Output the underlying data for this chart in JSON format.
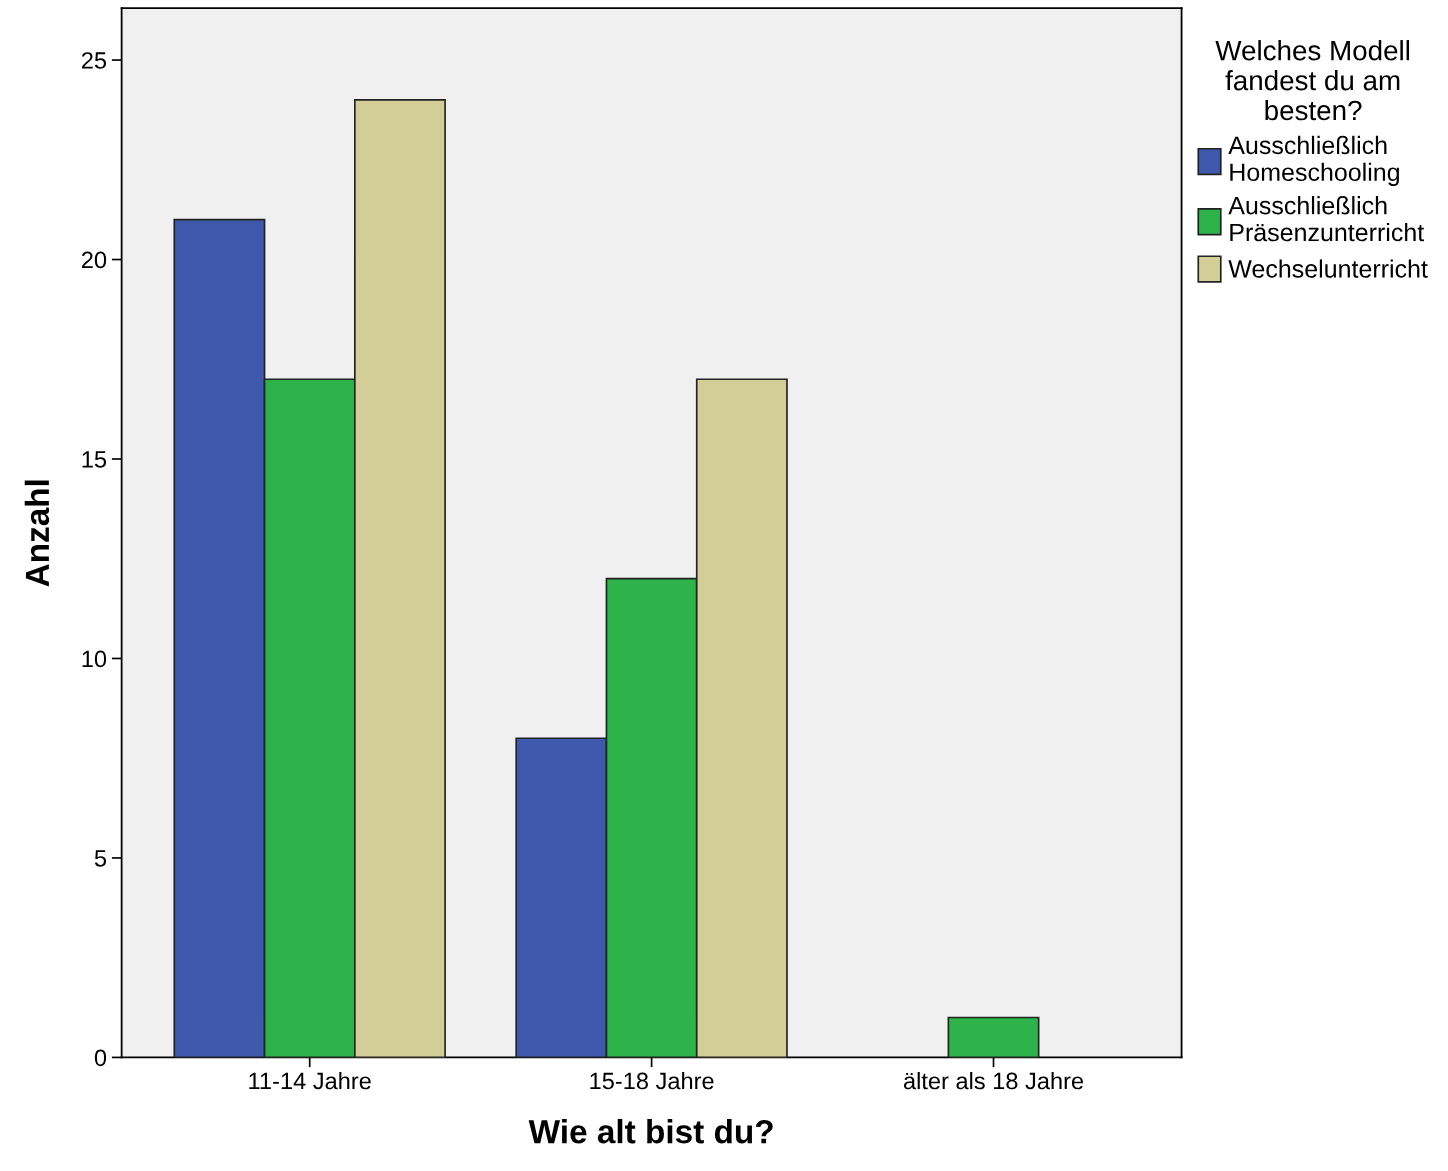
{
  "chart_data": {
    "type": "bar",
    "xlabel": "Wie alt bist du?",
    "ylabel": "Anzahl",
    "legend_title": "Welches Modell\nfandest du am\nbesten?",
    "categories": [
      "11-14 Jahre",
      "15-18 Jahre",
      "älter als 18 Jahre"
    ],
    "series": [
      {
        "name": "Ausschließlich\nHomeschooling",
        "color": "#3e58ac",
        "values": [
          21,
          8,
          null
        ]
      },
      {
        "name": "Ausschließlich\nPräsenzunterricht",
        "color": "#2db34a",
        "values": [
          17,
          12,
          1
        ]
      },
      {
        "name": "Wechselunterricht",
        "color": "#d3ce97",
        "values": [
          24,
          17,
          null
        ]
      }
    ],
    "ylim": [
      0,
      26.3
    ],
    "yticks": [
      0,
      5,
      10,
      15,
      20,
      25
    ],
    "grid": false,
    "legend": "top right"
  }
}
